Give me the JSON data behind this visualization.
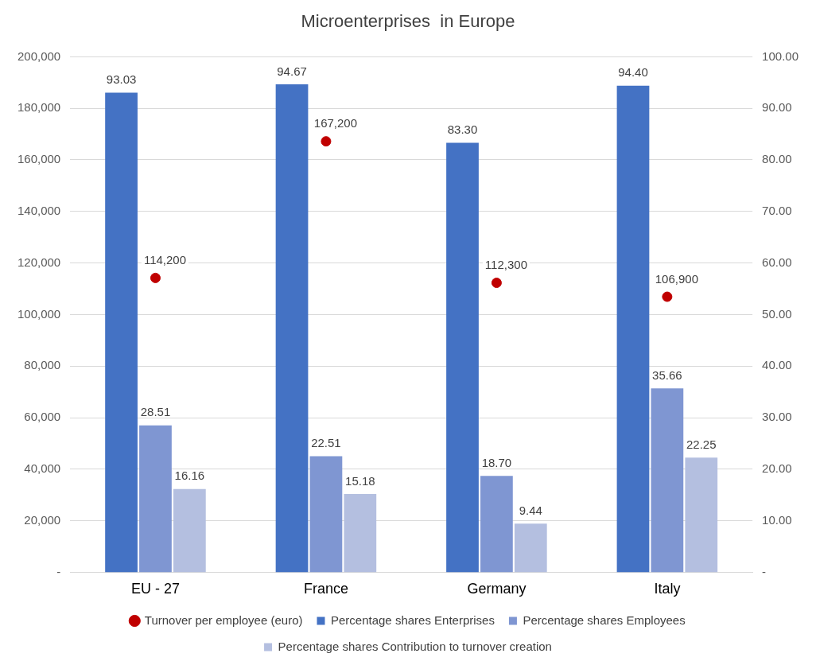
{
  "chart_data": {
    "type": "bar",
    "title": "Microenterprises  in Europe",
    "categories": [
      "EU - 27",
      "France",
      "Germany",
      "Italy"
    ],
    "series": [
      {
        "name": "Percentage shares Enterprises",
        "color": "#4472c4",
        "axis": "y2",
        "values": [
          93.03,
          94.67,
          83.3,
          94.4
        ],
        "value_labels": [
          "93.03",
          "94.67",
          "83.30",
          "94.40"
        ]
      },
      {
        "name": "Percentage shares Employees",
        "color": "#7f96d2",
        "axis": "y2",
        "values": [
          28.51,
          22.51,
          18.7,
          35.66
        ],
        "value_labels": [
          "28.51",
          "22.51",
          "18.70",
          "35.66"
        ]
      },
      {
        "name": "Percentage shares Contribution to turnover creation",
        "color": "#b4bfe0",
        "axis": "y2",
        "values": [
          16.16,
          15.18,
          9.44,
          22.25
        ],
        "value_labels": [
          "16.16",
          "15.18",
          "9.44",
          "22.25"
        ]
      },
      {
        "name": "Turnover per employee (euro)",
        "type": "scatter",
        "color": "#c00000",
        "axis": "y",
        "marker": "circle",
        "values": [
          114200,
          167200,
          112300,
          106900
        ],
        "value_labels": [
          "114,200",
          "167,200",
          "112,300",
          "106,900"
        ]
      }
    ],
    "ylim": [
      0,
      200000
    ],
    "yticks": [
      {
        "value": 0,
        "label": "-"
      },
      {
        "value": 20000,
        "label": "20,000"
      },
      {
        "value": 40000,
        "label": "40,000"
      },
      {
        "value": 60000,
        "label": "60,000"
      },
      {
        "value": 80000,
        "label": "80,000"
      },
      {
        "value": 100000,
        "label": "100,000"
      },
      {
        "value": 120000,
        "label": "120,000"
      },
      {
        "value": 140000,
        "label": "140,000"
      },
      {
        "value": 160000,
        "label": "160,000"
      },
      {
        "value": 180000,
        "label": "180,000"
      },
      {
        "value": 200000,
        "label": "200,000"
      }
    ],
    "y2lim": [
      0,
      100
    ],
    "y2ticks": [
      {
        "value": 0,
        "label": "-"
      },
      {
        "value": 10,
        "label": "10.00"
      },
      {
        "value": 20,
        "label": "20.00"
      },
      {
        "value": 30,
        "label": "30.00"
      },
      {
        "value": 40,
        "label": "40.00"
      },
      {
        "value": 50,
        "label": "50.00"
      },
      {
        "value": 60,
        "label": "60.00"
      },
      {
        "value": 70,
        "label": "70.00"
      },
      {
        "value": 80,
        "label": "80.00"
      },
      {
        "value": 90,
        "label": "90.00"
      },
      {
        "value": 100,
        "label": "100.00"
      }
    ],
    "grid": "y",
    "legend": "bottom"
  }
}
